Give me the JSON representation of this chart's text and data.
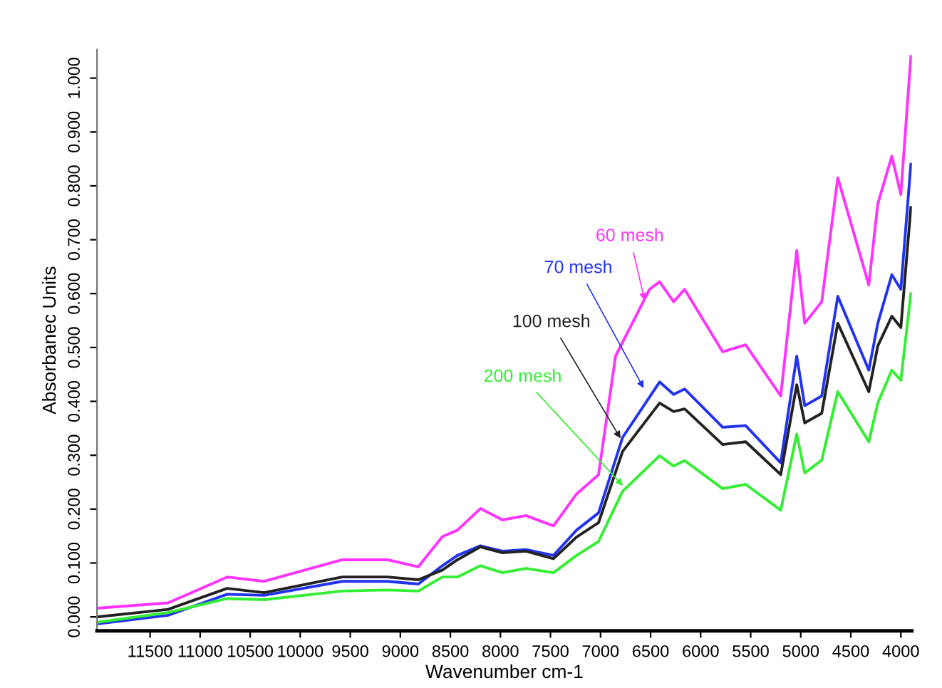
{
  "chart_data": {
    "type": "line",
    "xlabel": "Wavenumber cm-1",
    "ylabel": "Absorbanec Units",
    "xlim": [
      12030,
      3890
    ],
    "xticks": [
      11500,
      11000,
      10500,
      10000,
      9500,
      9000,
      8500,
      8000,
      7500,
      7000,
      6500,
      6000,
      5500,
      5000,
      4500,
      4000
    ],
    "ylim": [
      -0.026,
      1.053
    ],
    "yticks": [
      {
        "value": 0,
        "label": "0.000"
      },
      {
        "value": 0.1,
        "label": "0.100"
      },
      {
        "value": 0.2,
        "label": "0.200"
      },
      {
        "value": 0.3,
        "label": "0.300"
      },
      {
        "value": 0.4,
        "label": "0.400"
      },
      {
        "value": 0.5,
        "label": "0.500"
      },
      {
        "value": 0.6,
        "label": "0.600"
      },
      {
        "value": 0.7,
        "label": "0.700"
      },
      {
        "value": 0.8,
        "label": "0.800"
      },
      {
        "value": 0.9,
        "label": "0.900"
      },
      {
        "value": 1.0,
        "label": "1.000"
      }
    ],
    "grid": false,
    "legend": false,
    "series": [
      {
        "color": "#ff33ff",
        "x": [
          12030,
          11320,
          10730,
          10360,
          9580,
          9130,
          8820,
          8580,
          8430,
          8200,
          7980,
          7745,
          7470,
          7240,
          7020,
          6850,
          6510,
          6410,
          6270,
          6160,
          5780,
          5550,
          5200,
          5040,
          4960,
          4790,
          4630,
          4320,
          4230,
          4090,
          4000,
          3900
        ],
        "values": [
          0.016,
          0.026,
          0.074,
          0.066,
          0.106,
          0.106,
          0.093,
          0.149,
          0.161,
          0.201,
          0.18,
          0.188,
          0.169,
          0.228,
          0.264,
          0.484,
          0.608,
          0.622,
          0.585,
          0.608,
          0.492,
          0.505,
          0.41,
          0.68,
          0.545,
          0.585,
          0.815,
          0.616,
          0.767,
          0.855,
          0.784,
          1.04
        ]
      },
      {
        "color": "#2233ee",
        "x": [
          12030,
          11320,
          10730,
          10360,
          9580,
          9130,
          8820,
          8580,
          8430,
          8200,
          7980,
          7745,
          7470,
          7240,
          7020,
          6780,
          6410,
          6270,
          6160,
          5780,
          5550,
          5200,
          5040,
          4960,
          4790,
          4630,
          4320,
          4230,
          4090,
          4000,
          3900
        ],
        "values": [
          -0.013,
          0.003,
          0.042,
          0.04,
          0.066,
          0.066,
          0.061,
          0.095,
          0.114,
          0.132,
          0.122,
          0.125,
          0.114,
          0.161,
          0.193,
          0.333,
          0.436,
          0.413,
          0.423,
          0.352,
          0.355,
          0.286,
          0.484,
          0.392,
          0.41,
          0.595,
          0.458,
          0.545,
          0.635,
          0.608,
          0.84
        ]
      },
      {
        "color": "#222222",
        "x": [
          12030,
          11320,
          10730,
          10360,
          9580,
          9130,
          8820,
          8580,
          8430,
          8200,
          7980,
          7745,
          7470,
          7240,
          7020,
          6780,
          6410,
          6270,
          6160,
          5780,
          5550,
          5200,
          5040,
          4960,
          4790,
          4630,
          4320,
          4230,
          4090,
          4000,
          3900
        ],
        "values": [
          0.0,
          0.014,
          0.053,
          0.045,
          0.074,
          0.074,
          0.069,
          0.087,
          0.106,
          0.13,
          0.119,
          0.122,
          0.108,
          0.148,
          0.175,
          0.307,
          0.397,
          0.381,
          0.386,
          0.32,
          0.325,
          0.264,
          0.431,
          0.36,
          0.378,
          0.545,
          0.418,
          0.503,
          0.558,
          0.537,
          0.76
        ]
      },
      {
        "color": "#33ee33",
        "x": [
          12030,
          11320,
          10730,
          10360,
          9580,
          9130,
          8820,
          8580,
          8430,
          8200,
          7980,
          7745,
          7470,
          7240,
          7020,
          6780,
          6410,
          6270,
          6160,
          5780,
          5550,
          5200,
          5040,
          4960,
          4790,
          4630,
          4320,
          4230,
          4090,
          4000,
          3900
        ],
        "values": [
          -0.01,
          0.008,
          0.034,
          0.032,
          0.048,
          0.05,
          0.048,
          0.074,
          0.074,
          0.095,
          0.082,
          0.09,
          0.082,
          0.114,
          0.14,
          0.233,
          0.299,
          0.28,
          0.29,
          0.238,
          0.246,
          0.198,
          0.339,
          0.267,
          0.291,
          0.418,
          0.325,
          0.397,
          0.458,
          0.439,
          0.6
        ]
      }
    ],
    "annotations": [
      {
        "text": "60 mesh",
        "x": 6550,
        "y": 0.58
      },
      {
        "text": "70 mesh",
        "x": 6550,
        "y": 0.418
      },
      {
        "text": "100 mesh",
        "x": 6780,
        "y": 0.325
      },
      {
        "text": "200 mesh",
        "x": 6750,
        "y": 0.238
      }
    ]
  }
}
